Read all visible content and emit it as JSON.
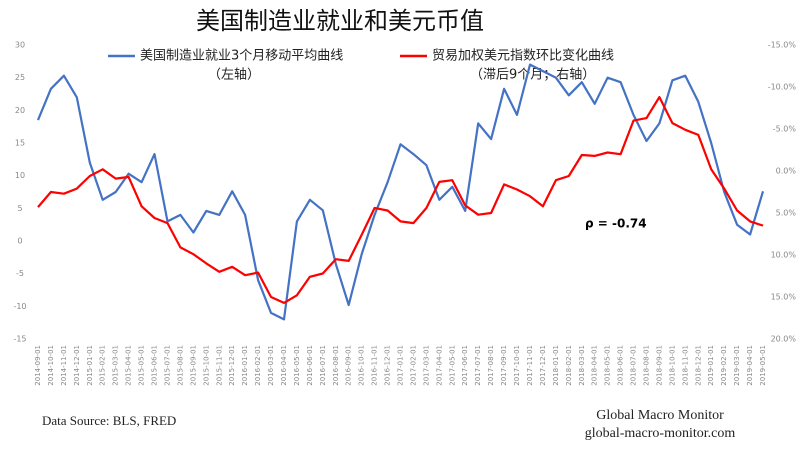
{
  "chart_data": {
    "type": "line",
    "title": "美国制造业就业和美元币值",
    "categories": [
      "2014-09-01",
      "2014-10-01",
      "2014-11-01",
      "2014-12-01",
      "2015-01-01",
      "2015-02-01",
      "2015-03-01",
      "2015-04-01",
      "2015-05-01",
      "2015-06-01",
      "2015-07-01",
      "2015-08-01",
      "2015-09-01",
      "2015-10-01",
      "2015-11-01",
      "2015-12-01",
      "2016-01-01",
      "2016-02-01",
      "2016-03-01",
      "2016-04-01",
      "2016-05-01",
      "2016-06-01",
      "2016-07-01",
      "2016-08-01",
      "2016-09-01",
      "2016-10-01",
      "2016-11-01",
      "2016-12-01",
      "2017-01-01",
      "2017-02-01",
      "2017-03-01",
      "2017-04-01",
      "2017-05-01",
      "2017-06-01",
      "2017-07-01",
      "2017-08-01",
      "2017-09-01",
      "2017-10-01",
      "2017-11-01",
      "2017-12-01",
      "2018-01-01",
      "2018-02-01",
      "2018-03-01",
      "2018-04-01",
      "2018-05-01",
      "2018-06-01",
      "2018-07-01",
      "2018-08-01",
      "2018-09-01",
      "2018-10-01",
      "2018-11-01",
      "2018-12-01",
      "2019-01-01",
      "2019-02-01",
      "2019-03-01",
      "2019-04-01",
      "2019-05-01"
    ],
    "series": [
      {
        "name": "美国制造业就业3个月移动平均曲线",
        "axis_note": "（左轴）",
        "color": "#4472c4",
        "values": [
          18.5,
          23.3,
          25.3,
          22,
          12,
          6.3,
          7.5,
          10.3,
          9,
          13.3,
          3,
          4,
          1.3,
          4.6,
          4,
          7.6,
          4,
          -6,
          -11,
          -12,
          3,
          6.3,
          4.7,
          -3.5,
          -9.8,
          -2,
          4,
          9,
          14.8,
          13.3,
          11.6,
          6.3,
          8.3,
          4.6,
          18,
          15.6,
          23.3,
          19.3,
          27,
          26,
          25,
          22.3,
          24.3,
          21,
          25,
          24.3,
          19.3,
          15.3,
          18,
          24.6,
          25.3,
          21.3,
          15,
          7.5,
          2.5,
          1,
          7.6
        ]
      },
      {
        "name": "贸易加权美元指数环比变化曲线",
        "axis_note": "（滞后9个月；右轴）",
        "color": "#ff0000",
        "axis": "y2",
        "values": [
          4.3,
          2.5,
          2.7,
          2.1,
          0.6,
          -0.2,
          0.9,
          0.7,
          4.2,
          5.6,
          6.2,
          9.1,
          9.9,
          11.0,
          12.0,
          11.4,
          12.4,
          12.1,
          15.0,
          15.7,
          14.8,
          12.6,
          12.2,
          10.5,
          10.7,
          7.6,
          4.4,
          4.7,
          6.0,
          6.2,
          4.4,
          1.3,
          1.1,
          4.1,
          5.2,
          5.0,
          1.6,
          2.2,
          3.0,
          4.2,
          1.1,
          0.6,
          -1.9,
          -1.8,
          -2.2,
          -2.0,
          -6.0,
          -6.3,
          -8.8,
          -5.7,
          -4.9,
          -4.3,
          -0.2,
          2.1,
          4.7,
          6.0,
          6.5
        ]
      }
    ],
    "ylim": [
      -15,
      30
    ],
    "yticks": [
      -15,
      -10,
      -5,
      0,
      5,
      10,
      15,
      20,
      25,
      30
    ],
    "y2lim": [
      20,
      -15
    ],
    "y2ticks": [
      {
        "value": -15,
        "label": "-15.0%"
      },
      {
        "value": -10,
        "label": "-10.0%"
      },
      {
        "value": -5,
        "label": "-5.0%"
      },
      {
        "value": 0,
        "label": "0.0%"
      },
      {
        "value": 5,
        "label": "5.0%"
      },
      {
        "value": 10,
        "label": "10.0%"
      },
      {
        "value": 15,
        "label": "15.0%"
      },
      {
        "value": 20,
        "label": "20.0%"
      }
    ],
    "annotation": "ρ =  -0.74",
    "source": "Data Source:  BLS, FRED",
    "brand": "Global Macro Monitor",
    "website": "global-macro-monitor.com"
  }
}
